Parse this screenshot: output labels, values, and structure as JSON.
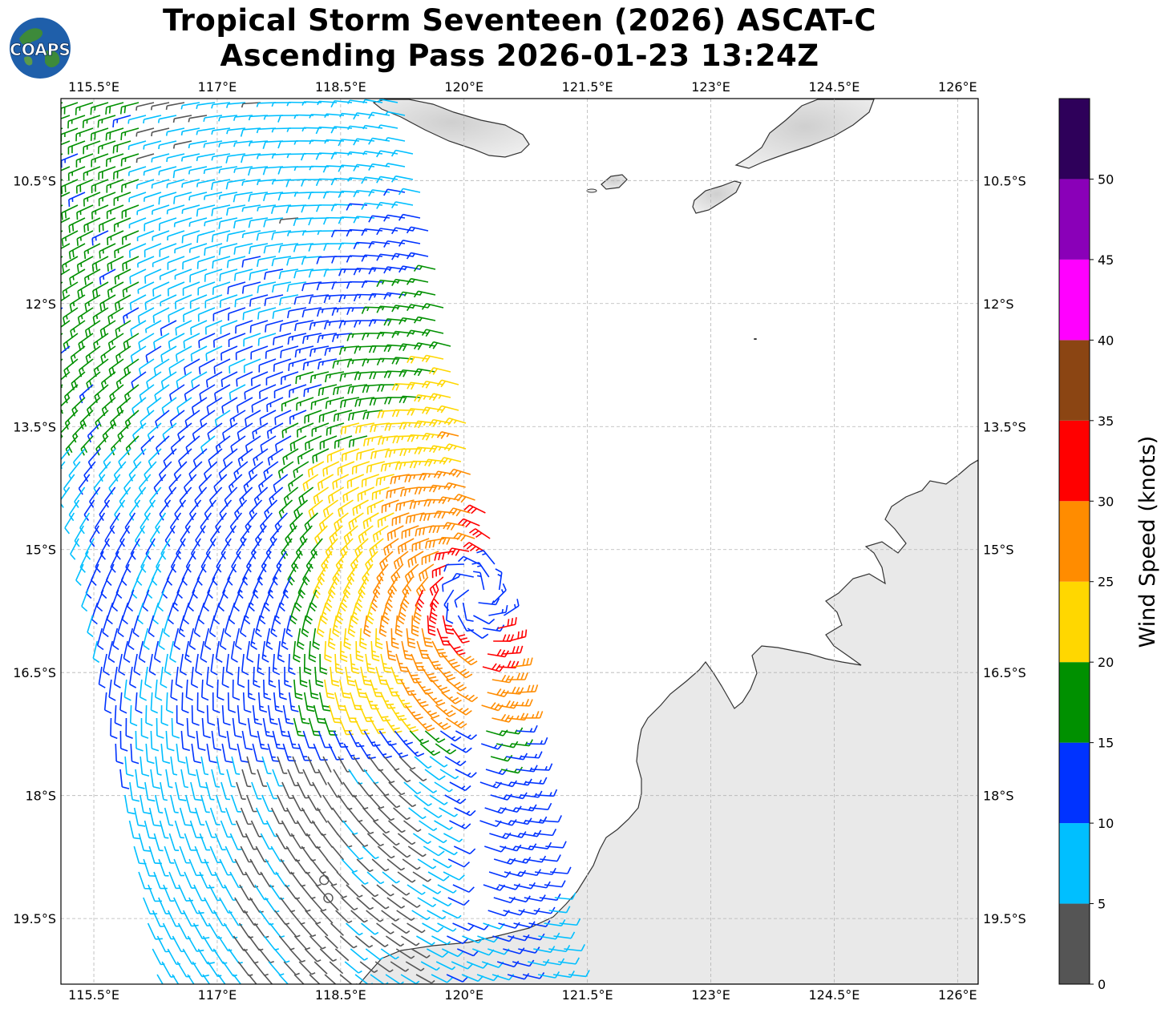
{
  "header": {
    "title_line1": "Tropical Storm Seventeen (2026) ASCAT-C",
    "title_line2": "Ascending Pass 2026-01-23 13:24Z",
    "logo_text": "COAPS"
  },
  "colors": {
    "land": "#e4e4e4",
    "coastline": "#333333",
    "grid": "#b4b4b4"
  },
  "chart_data": {
    "type": "wind_barbs",
    "projection": "PlateCarree",
    "lon_range": [
      115.1,
      126.25
    ],
    "lat_range": [
      -20.3,
      -9.5
    ],
    "x_ticks": [
      115.5,
      117.0,
      118.5,
      120.0,
      121.5,
      123.0,
      124.5,
      126.0
    ],
    "x_tick_labels": [
      "115.5°E",
      "117°E",
      "118.5°E",
      "120°E",
      "121.5°E",
      "123°E",
      "124.5°E",
      "126°E"
    ],
    "y_ticks": [
      -10.5,
      -12.0,
      -13.5,
      -15.0,
      -16.5,
      -18.0,
      -19.5
    ],
    "y_tick_labels": [
      "10.5°S",
      "12°S",
      "13.5°S",
      "15°S",
      "16.5°S",
      "18°S",
      "19.5°S"
    ],
    "grid": true,
    "storm_center": {
      "lon": 120.15,
      "lat": -15.55
    },
    "calm_points": [
      {
        "lon": 118.3,
        "lat": -19.03
      },
      {
        "lon": 118.35,
        "lat": -19.25
      }
    ],
    "colorbar": {
      "label": "Wind Speed (knots)",
      "units": "knots",
      "boundaries": [
        0,
        5,
        10,
        15,
        20,
        25,
        30,
        35,
        40,
        45,
        50,
        55
      ],
      "tick_values": [
        0,
        5,
        10,
        15,
        20,
        25,
        30,
        35,
        40,
        45,
        50
      ],
      "tick_labels": [
        "0",
        "5",
        "10",
        "15",
        "20",
        "25",
        "30",
        "35",
        "40",
        "45",
        "50"
      ],
      "colors": [
        "#555555",
        "#00bfff",
        "#0033ff",
        "#009000",
        "#ffd700",
        "#ff8c00",
        "#ff0000",
        "#8b4513",
        "#ff00ff",
        "#8a00b8",
        "#2e005a"
      ]
    }
  }
}
